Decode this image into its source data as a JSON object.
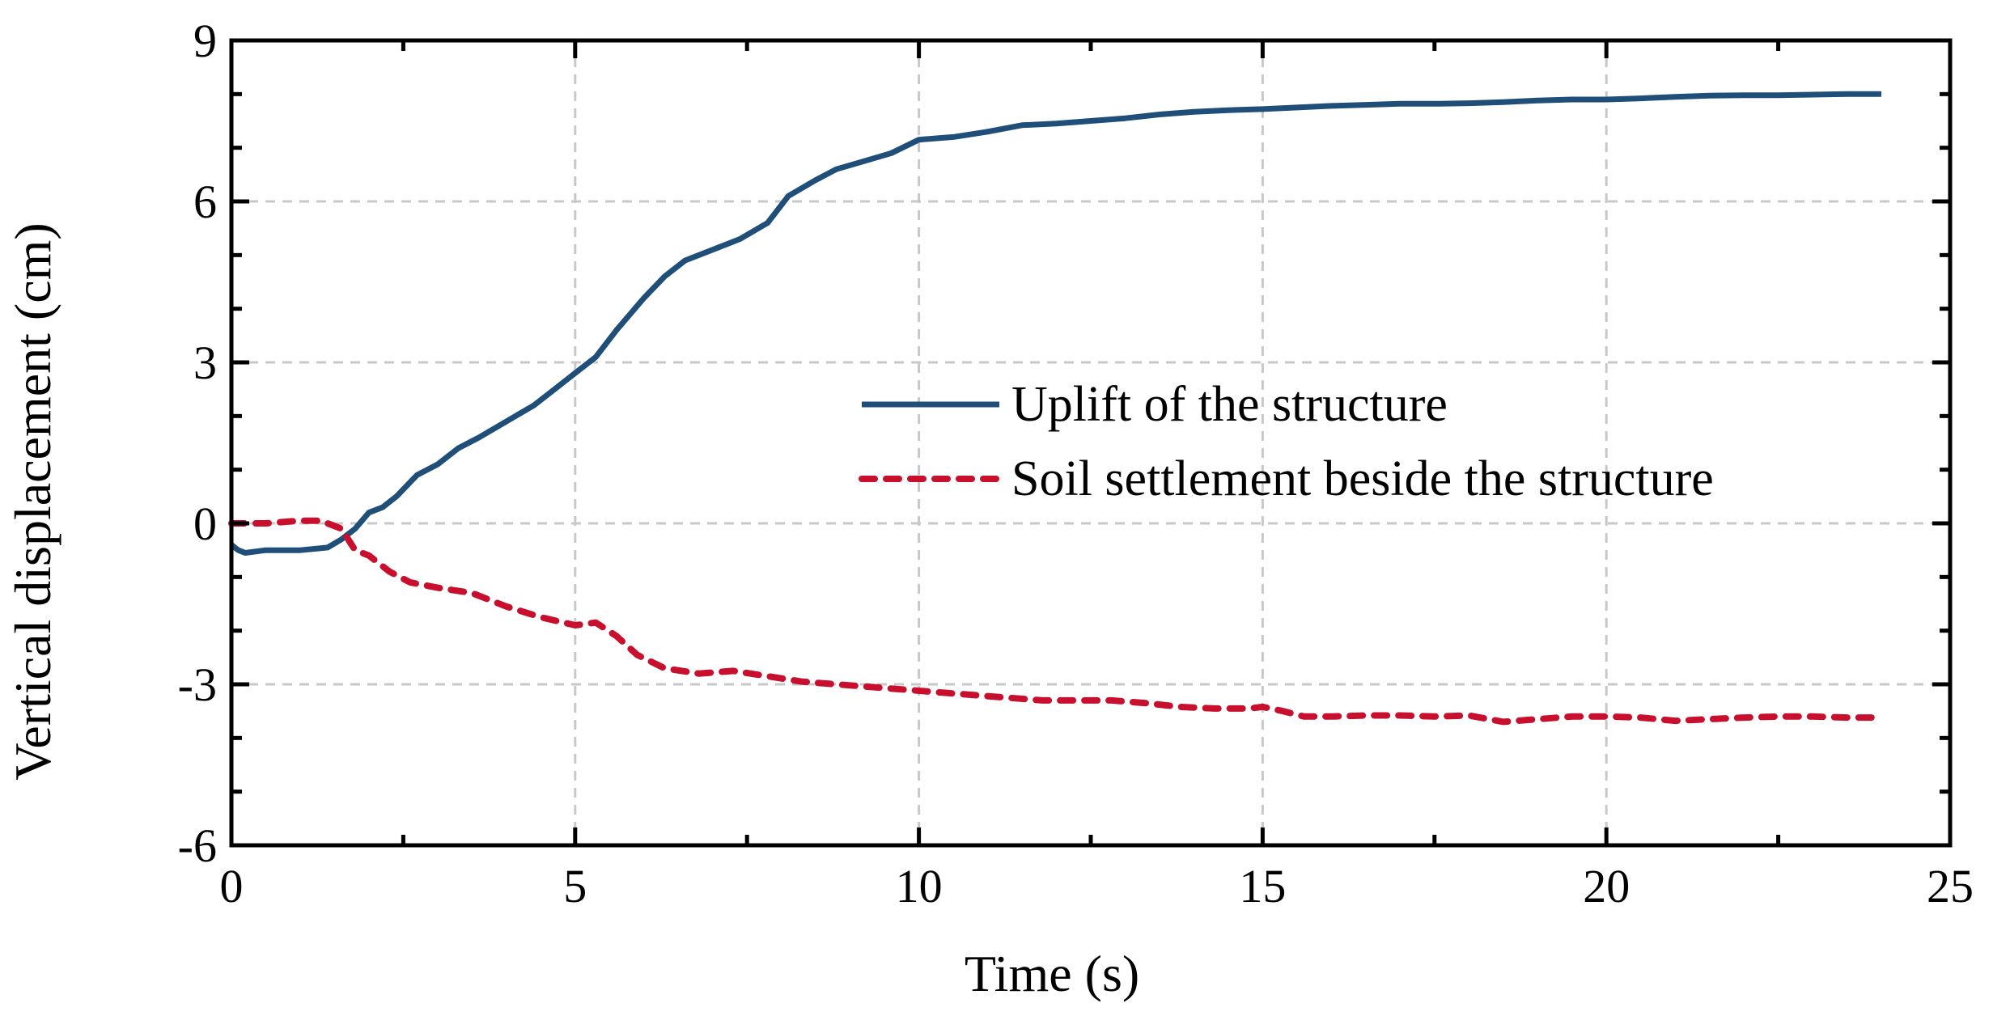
{
  "chart_data": {
    "type": "line",
    "xlabel": "Time (s)",
    "ylabel": "Vertical displacement (cm)",
    "xlim": [
      0,
      25
    ],
    "ylim": [
      -6,
      9
    ],
    "xticks": [
      0,
      5,
      10,
      15,
      20,
      25
    ],
    "yticks": [
      -6,
      -3,
      0,
      3,
      6,
      9
    ],
    "grid": true,
    "legend_position": "center-right",
    "series": [
      {
        "name": "Uplift of the structure",
        "color": "#1f4e79",
        "style": "solid",
        "x": [
          0,
          0.1,
          0.2,
          0.5,
          1.0,
          1.4,
          1.6,
          1.8,
          2.0,
          2.2,
          2.4,
          2.7,
          3.0,
          3.3,
          3.6,
          4.0,
          4.4,
          4.7,
          5.0,
          5.3,
          5.6,
          6.0,
          6.3,
          6.6,
          7.0,
          7.4,
          7.8,
          8.1,
          8.5,
          8.8,
          9.2,
          9.6,
          10.0,
          10.5,
          11.0,
          11.5,
          12.0,
          12.5,
          13.0,
          13.5,
          14.0,
          14.5,
          15.0,
          15.5,
          16.0,
          16.5,
          17.0,
          17.5,
          18.0,
          18.5,
          19.0,
          19.5,
          20.0,
          20.5,
          21.0,
          21.5,
          22.0,
          22.5,
          23.0,
          23.5,
          24.0
        ],
        "y": [
          -0.4,
          -0.5,
          -0.55,
          -0.5,
          -0.5,
          -0.45,
          -0.3,
          -0.1,
          0.2,
          0.3,
          0.5,
          0.9,
          1.1,
          1.4,
          1.6,
          1.9,
          2.2,
          2.5,
          2.8,
          3.1,
          3.6,
          4.2,
          4.6,
          4.9,
          5.1,
          5.3,
          5.6,
          6.1,
          6.4,
          6.6,
          6.75,
          6.9,
          7.15,
          7.2,
          7.3,
          7.42,
          7.45,
          7.5,
          7.55,
          7.62,
          7.67,
          7.7,
          7.72,
          7.75,
          7.78,
          7.8,
          7.82,
          7.82,
          7.83,
          7.85,
          7.88,
          7.9,
          7.9,
          7.92,
          7.95,
          7.97,
          7.98,
          7.98,
          7.99,
          8.0,
          8.0
        ]
      },
      {
        "name": "Soil settlement beside the structure",
        "color": "#c8102e",
        "style": "dashed",
        "x": [
          0,
          0.5,
          1.0,
          1.3,
          1.6,
          1.8,
          2.0,
          2.3,
          2.6,
          3.0,
          3.5,
          4.0,
          4.5,
          5.0,
          5.3,
          5.6,
          5.9,
          6.3,
          6.8,
          7.3,
          7.8,
          8.3,
          8.8,
          9.3,
          9.8,
          10.3,
          10.8,
          11.3,
          11.8,
          12.3,
          12.8,
          13.3,
          13.8,
          14.3,
          14.8,
          15.0,
          15.3,
          15.6,
          16.0,
          16.5,
          17.0,
          17.5,
          18.0,
          18.5,
          19.0,
          19.5,
          20.0,
          20.5,
          21.0,
          21.5,
          22.0,
          22.5,
          23.0,
          23.5,
          24.0
        ],
        "y": [
          0.0,
          0.0,
          0.05,
          0.05,
          -0.1,
          -0.5,
          -0.6,
          -0.9,
          -1.1,
          -1.2,
          -1.3,
          -1.55,
          -1.75,
          -1.9,
          -1.85,
          -2.1,
          -2.45,
          -2.7,
          -2.8,
          -2.75,
          -2.85,
          -2.95,
          -3.0,
          -3.05,
          -3.1,
          -3.15,
          -3.2,
          -3.25,
          -3.3,
          -3.3,
          -3.3,
          -3.35,
          -3.42,
          -3.45,
          -3.45,
          -3.42,
          -3.5,
          -3.6,
          -3.6,
          -3.58,
          -3.58,
          -3.6,
          -3.58,
          -3.7,
          -3.65,
          -3.6,
          -3.6,
          -3.62,
          -3.68,
          -3.65,
          -3.62,
          -3.6,
          -3.6,
          -3.62,
          -3.62
        ]
      }
    ]
  }
}
